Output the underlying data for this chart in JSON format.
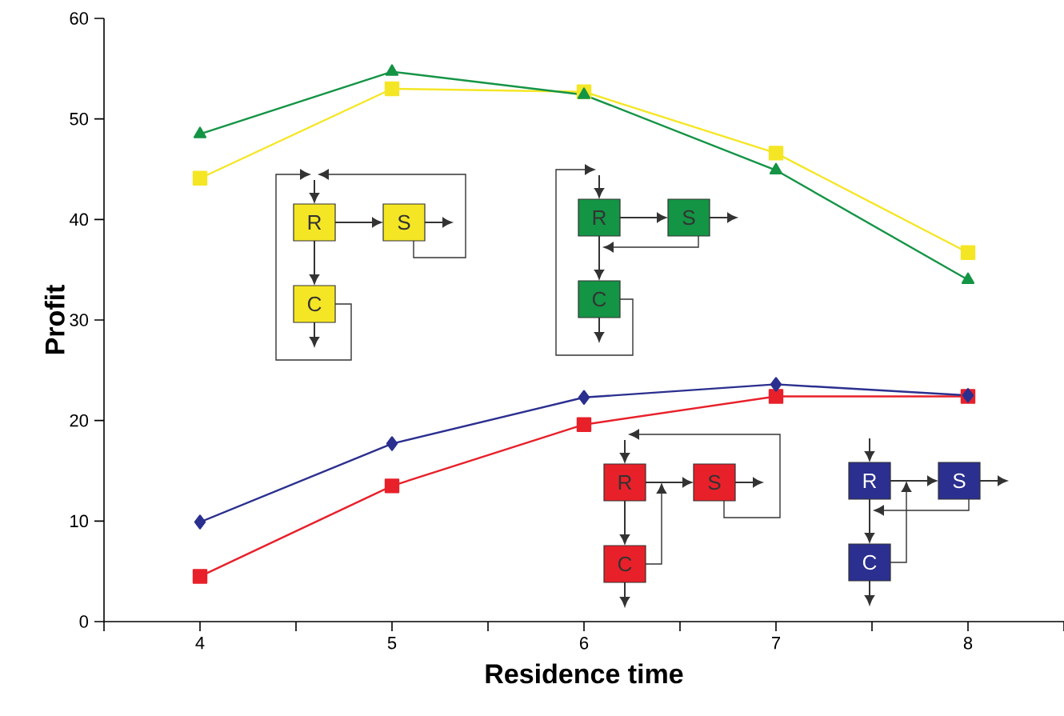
{
  "chart_data": {
    "type": "line",
    "xlabel": "Residence time",
    "ylabel": "Profit",
    "x": [
      4,
      5,
      6,
      7,
      8
    ],
    "xlim": [
      3.5,
      8.5
    ],
    "xticks": [
      {
        "value": 3.5,
        "label": null
      },
      4,
      {
        "value": 4.5,
        "label": null
      },
      5,
      {
        "value": 5.5,
        "label": null
      },
      6,
      {
        "value": 6.5,
        "label": null
      },
      7,
      {
        "value": 7.5,
        "label": null
      },
      8,
      {
        "value": 8.5,
        "label": null
      }
    ],
    "ylim": [
      0,
      60
    ],
    "yticks": [
      0,
      10,
      20,
      30,
      40,
      50,
      60
    ],
    "grid": false,
    "line_style": "solid",
    "series": [
      {
        "color": "#f5e625",
        "marker": "square",
        "values": [
          44.1,
          53.0,
          52.7,
          46.6,
          36.7
        ]
      },
      {
        "color": "#149445",
        "marker": "triangle",
        "values": [
          48.5,
          54.7,
          52.4,
          44.9,
          34.0
        ]
      },
      {
        "color": "#e8202a",
        "marker": "square",
        "values": [
          4.5,
          13.5,
          19.6,
          22.4,
          22.4
        ]
      },
      {
        "color": "#2b2f8f",
        "marker": "diamond",
        "values": [
          9.9,
          17.7,
          22.3,
          23.6,
          22.5
        ]
      }
    ],
    "annotations": [
      "R",
      "S",
      "C",
      "R",
      "S",
      "C",
      "R",
      "S",
      "C",
      "R",
      "S",
      "C"
    ]
  }
}
